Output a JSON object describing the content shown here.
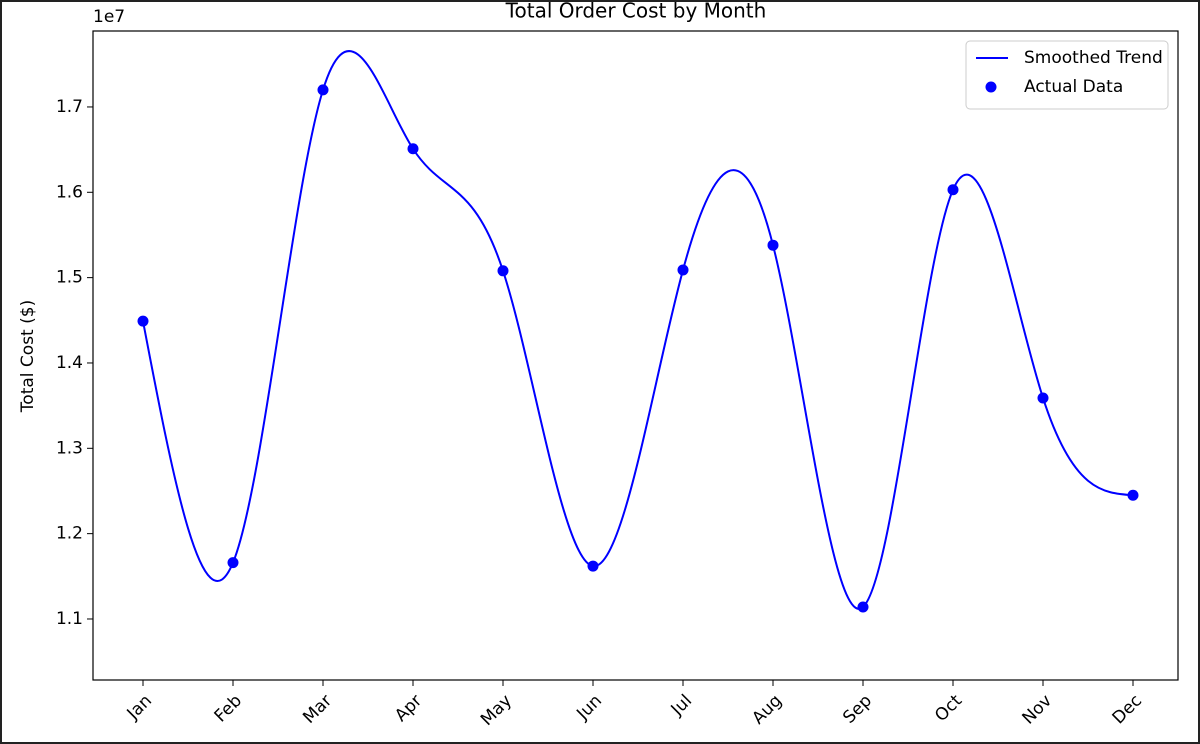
{
  "chart_data": {
    "type": "line",
    "title": "Total Order Cost by Month",
    "ylabel": "Total Cost ($)",
    "offset_label": "1e7",
    "categories": [
      "Jan",
      "Feb",
      "Mar",
      "Apr",
      "May",
      "Jun",
      "Jul",
      "Aug",
      "Sep",
      "Oct",
      "Nov",
      "Dec"
    ],
    "series": [
      {
        "name": "Smoothed Trend",
        "color": "#0000ff",
        "style": "smooth-line",
        "values": [
          1.449,
          1.166,
          1.72,
          1.651,
          1.508,
          1.162,
          1.509,
          1.538,
          1.114,
          1.603,
          1.359,
          1.245
        ]
      },
      {
        "name": "Actual Data",
        "color": "#0000ff",
        "style": "markers",
        "values": [
          1.449,
          1.166,
          1.72,
          1.651,
          1.508,
          1.162,
          1.509,
          1.538,
          1.114,
          1.603,
          1.359,
          1.245
        ]
      }
    ],
    "ylim": [
      1.0285,
      1.789
    ],
    "yticks": [
      1.1,
      1.2,
      1.3,
      1.4,
      1.5,
      1.6,
      1.7
    ],
    "legend": "upper right",
    "grid": false
  }
}
